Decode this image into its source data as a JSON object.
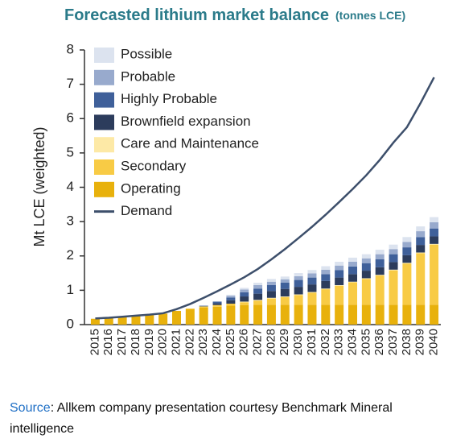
{
  "chart_data": {
    "type": "bar",
    "title": "Forecasted lithium market balance",
    "subtitle": "(tonnes LCE)",
    "y_label": "Mt LCE (weighted)",
    "stacked": true,
    "categories": [
      "2015",
      "2016",
      "2017",
      "2018",
      "2019",
      "2020",
      "2021",
      "2022",
      "2023",
      "2024",
      "2025",
      "2026",
      "2027",
      "2028",
      "2029",
      "2030",
      "2031",
      "2032",
      "2033",
      "2034",
      "2035",
      "2036",
      "2037",
      "2038",
      "2039",
      "2040"
    ],
    "series": [
      {
        "name": "Operating",
        "color": "#e8b10c",
        "values": [
          0.17,
          0.19,
          0.22,
          0.25,
          0.28,
          0.32,
          0.4,
          0.45,
          0.5,
          0.52,
          0.55,
          0.57,
          0.58,
          0.58,
          0.58,
          0.58,
          0.58,
          0.58,
          0.58,
          0.58,
          0.58,
          0.58,
          0.58,
          0.58,
          0.58,
          0.58
        ]
      },
      {
        "name": "Secondary",
        "color": "#f8cb45",
        "values": [
          0,
          0,
          0,
          0,
          0,
          0,
          0,
          0.02,
          0.03,
          0.05,
          0.06,
          0.08,
          0.12,
          0.18,
          0.22,
          0.28,
          0.35,
          0.45,
          0.55,
          0.65,
          0.75,
          0.85,
          1.0,
          1.2,
          1.5,
          1.75
        ]
      },
      {
        "name": "Care and Maintenance",
        "color": "#fde9a6",
        "values": [
          0,
          0,
          0,
          0,
          0,
          0,
          0,
          0,
          0,
          0,
          0,
          0.02,
          0.02,
          0.02,
          0.02,
          0.02,
          0.02,
          0.02,
          0.02,
          0.02,
          0.02,
          0.02,
          0.02,
          0.02,
          0.02,
          0.02
        ]
      },
      {
        "name": "Brownfield expansion",
        "color": "#2c3c5c",
        "values": [
          0,
          0,
          0,
          0,
          0,
          0,
          0,
          0,
          0,
          0.05,
          0.1,
          0.15,
          0.18,
          0.2,
          0.22,
          0.22,
          0.22,
          0.22,
          0.22,
          0.22,
          0.22,
          0.22,
          0.22,
          0.22,
          0.22,
          0.22
        ]
      },
      {
        "name": "Highly Probable",
        "color": "#3f609a",
        "values": [
          0,
          0,
          0,
          0,
          0,
          0,
          0,
          0,
          0.02,
          0.05,
          0.08,
          0.12,
          0.15,
          0.17,
          0.18,
          0.2,
          0.2,
          0.2,
          0.22,
          0.22,
          0.22,
          0.23,
          0.23,
          0.23,
          0.23,
          0.23
        ]
      },
      {
        "name": "Probable",
        "color": "#98aacd",
        "values": [
          0,
          0,
          0,
          0,
          0,
          0,
          0,
          0,
          0,
          0,
          0.05,
          0.08,
          0.1,
          0.1,
          0.1,
          0.11,
          0.12,
          0.13,
          0.13,
          0.14,
          0.14,
          0.15,
          0.15,
          0.16,
          0.17,
          0.18
        ]
      },
      {
        "name": "Possible",
        "color": "#dce3ef",
        "values": [
          0,
          0,
          0,
          0,
          0,
          0,
          0,
          0,
          0,
          0,
          0.03,
          0.05,
          0.07,
          0.08,
          0.08,
          0.09,
          0.1,
          0.1,
          0.11,
          0.12,
          0.12,
          0.13,
          0.13,
          0.14,
          0.14,
          0.15
        ]
      }
    ],
    "line": {
      "name": "Demand",
      "color": "#3d4f6b",
      "values": [
        0.18,
        0.2,
        0.23,
        0.26,
        0.29,
        0.33,
        0.45,
        0.6,
        0.78,
        0.97,
        1.17,
        1.38,
        1.62,
        1.9,
        2.2,
        2.52,
        2.85,
        3.2,
        3.57,
        3.95,
        4.35,
        4.8,
        5.3,
        5.75,
        6.45,
        7.2
      ]
    },
    "ylim": [
      0,
      8
    ],
    "yticks": [
      0,
      1,
      2,
      3,
      4,
      5,
      6,
      7,
      8
    ],
    "source_label": "Source",
    "source_text": ": Allkem company presentation courtesy Benchmark Mineral intelligence"
  }
}
